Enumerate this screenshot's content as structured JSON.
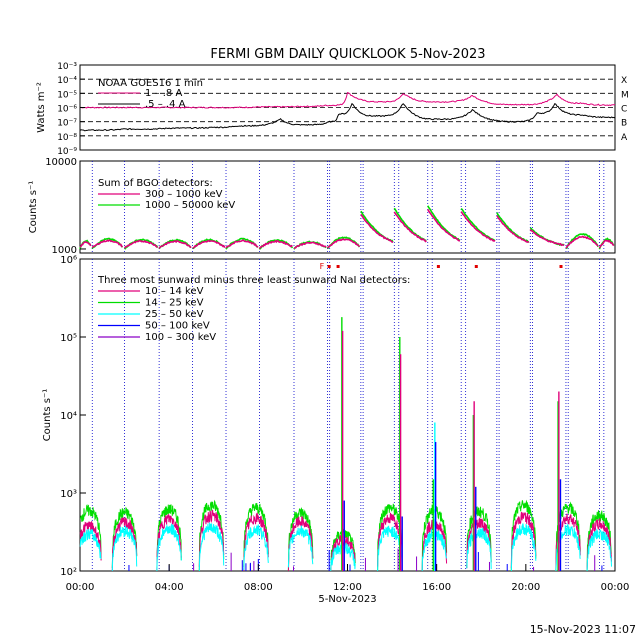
{
  "header": {
    "title": "FERMI GBM DAILY QUICKLOOK    5-Nov-2023",
    "footer_timestamp": "15-Nov-2023 11:07"
  },
  "colors": {
    "magenta": "#e0007a",
    "green": "#00dd00",
    "cyan": "#00ffff",
    "blue": "#0000ff",
    "purple": "#8b00c8",
    "black": "#000000",
    "flag_red": "#e00000"
  },
  "chart_data": [
    {
      "type": "line",
      "panel": "goes",
      "ylabel": "Watts m⁻²",
      "ylim": [
        1e-09,
        0.001
      ],
      "log_y": true,
      "y_tick_labels": [
        "10⁻³",
        "10⁻⁴",
        "10⁻⁵",
        "10⁻⁶",
        "10⁻⁷",
        "10⁻⁸",
        "10⁻⁹"
      ],
      "flare_classes": [
        "X",
        "M",
        "C",
        "B",
        "A"
      ],
      "legend_title": "NOAA GOES16 1 min",
      "series": [
        {
          "name": "1 – .8 A",
          "color": "magenta",
          "x": [
            0,
            2,
            4,
            6,
            8,
            10,
            11,
            11.5,
            12,
            13.5,
            14.5,
            16,
            17.6,
            19.5,
            21.4,
            22.5,
            24
          ],
          "values": [
            1e-06,
            1e-06,
            1e-06,
            1e-06,
            1.1e-06,
            1.2e-06,
            1.4e-06,
            1.5e-06,
            1.2e-05,
            2.5e-06,
            1e-05,
            2.5e-06,
            7e-06,
            1.6e-06,
            8e-06,
            2e-06,
            1.5e-06
          ]
        },
        {
          "name": ".5 – .4 A",
          "color": "black",
          "x": [
            0,
            2,
            4,
            6,
            7,
            9,
            10,
            11.2,
            11.6,
            12.2,
            13.3,
            14.5,
            16,
            17.6,
            19.5,
            20.5,
            21.3,
            22.5,
            24
          ],
          "values": [
            2.5e-08,
            3e-08,
            3.5e-08,
            4e-08,
            5e-08,
            1.5e-07,
            6e-08,
            1e-07,
            3.5e-07,
            2e-06,
            2.5e-07,
            2e-06,
            1.5e-07,
            7e-07,
            1e-07,
            4e-07,
            2e-06,
            3e-07,
            2e-07
          ]
        }
      ]
    },
    {
      "type": "line",
      "panel": "bgo",
      "ylabel": "Counts s⁻¹",
      "ylim": [
        900,
        10000
      ],
      "log_y": true,
      "y_tick_labels": [
        "10000",
        "1000"
      ],
      "legend_title": "Sum of BGO detectors:",
      "series": [
        {
          "name": "300 – 1000 keV",
          "color": "magenta"
        },
        {
          "name": "1000 – 50000 keV",
          "color": "green"
        }
      ],
      "orbits": [
        {
          "start": 0.0,
          "end": 0.55,
          "peak": 1200
        },
        {
          "start": 0.55,
          "end": 2.0,
          "peak": 1250
        },
        {
          "start": 2.0,
          "end": 3.55,
          "peak": 1230
        },
        {
          "start": 3.55,
          "end": 5.05,
          "peak": 1220
        },
        {
          "start": 5.05,
          "end": 6.55,
          "peak": 1230
        },
        {
          "start": 6.55,
          "end": 8.05,
          "peak": 1250
        },
        {
          "start": 8.05,
          "end": 9.6,
          "peak": 1220
        },
        {
          "start": 9.6,
          "end": 11.1,
          "peak": 1170
        },
        {
          "start": 11.1,
          "end": 12.6,
          "peak": 1300
        },
        {
          "start": 12.6,
          "end": 14.1,
          "peak": 2600
        },
        {
          "start": 14.1,
          "end": 15.6,
          "peak": 2800
        },
        {
          "start": 15.6,
          "end": 17.1,
          "peak": 3000
        },
        {
          "start": 17.1,
          "end": 18.7,
          "peak": 2800
        },
        {
          "start": 18.7,
          "end": 20.2,
          "peak": 2500
        },
        {
          "start": 20.2,
          "end": 21.8,
          "peak": 1700
        },
        {
          "start": 21.8,
          "end": 23.3,
          "peak": 1400
        },
        {
          "start": 23.3,
          "end": 24.0,
          "peak": 1250
        }
      ]
    },
    {
      "type": "line",
      "panel": "nai",
      "ylabel": "Counts s⁻¹",
      "ylim": [
        100,
        1000000
      ],
      "log_y": true,
      "y_tick_labels": [
        "10⁶",
        "10⁵",
        "10⁴",
        "10³",
        "10²"
      ],
      "legend_title": "Three most sunward minus three least sunward NaI detectors:",
      "series": [
        {
          "name": "10 – 14 keV",
          "color": "magenta"
        },
        {
          "name": "14 – 25 keV",
          "color": "green"
        },
        {
          "name": "25 – 50 keV",
          "color": "cyan"
        },
        {
          "name": "50 – 100 keV",
          "color": "blue"
        },
        {
          "name": "100 – 300 keV",
          "color": "purple"
        }
      ],
      "humps": [
        {
          "center": 0.4,
          "green": 600,
          "magenta": 380,
          "cyan": 300
        },
        {
          "center": 2.0,
          "green": 560,
          "magenta": 420,
          "cyan": 330
        },
        {
          "center": 4.0,
          "green": 620,
          "magenta": 470,
          "cyan": 350
        },
        {
          "center": 5.9,
          "green": 700,
          "magenta": 520,
          "cyan": 360
        },
        {
          "center": 7.9,
          "green": 650,
          "magenta": 480,
          "cyan": 340
        },
        {
          "center": 9.9,
          "green": 560,
          "magenta": 430,
          "cyan": 330
        },
        {
          "center": 11.8,
          "green": 300,
          "magenta": 250,
          "cyan": 200
        },
        {
          "center": 13.9,
          "green": 650,
          "magenta": 480,
          "cyan": 330
        },
        {
          "center": 15.9,
          "green": 600,
          "magenta": 400,
          "cyan": 300
        },
        {
          "center": 17.9,
          "green": 580,
          "magenta": 420,
          "cyan": 320
        },
        {
          "center": 19.9,
          "green": 700,
          "magenta": 500,
          "cyan": 350
        },
        {
          "center": 21.9,
          "green": 650,
          "magenta": 480,
          "cyan": 340
        },
        {
          "center": 23.3,
          "green": 520,
          "magenta": 400,
          "cyan": 300
        }
      ],
      "spikes": [
        {
          "x": 11.8,
          "green": 180000,
          "magenta": 120000,
          "blue": 800
        },
        {
          "x": 14.4,
          "green": 100000,
          "magenta": 60000,
          "blue": 500
        },
        {
          "x": 15.9,
          "green": 1500,
          "cyan": 8000,
          "blue": 4500
        },
        {
          "x": 17.7,
          "green": 10000,
          "magenta": 15000,
          "blue": 1200
        },
        {
          "x": 21.5,
          "green": 15000,
          "magenta": 20000,
          "blue": 1500
        }
      ],
      "flags": [
        {
          "x": 11.2,
          "label": "F"
        },
        {
          "x": 11.6,
          "label": ""
        },
        {
          "x": 16.1,
          "label": ""
        },
        {
          "x": 17.8,
          "label": ""
        },
        {
          "x": 21.6,
          "label": ""
        }
      ],
      "x_ticks": [
        0,
        4,
        8,
        12,
        16,
        20,
        24
      ],
      "x_tick_labels": [
        "00:00",
        "04:00",
        "08:00",
        "12:00",
        "16:00",
        "20:00",
        "00:00"
      ],
      "xlabel": "5-Nov-2023",
      "xlim": [
        0,
        24
      ]
    }
  ],
  "dotted_lines_hours": [
    0.55,
    2.0,
    3.55,
    5.05,
    6.55,
    8.05,
    9.6,
    11.1,
    11.2,
    12.6,
    12.7,
    14.1,
    14.3,
    15.6,
    15.8,
    17.1,
    17.3,
    18.7,
    18.8,
    20.2,
    20.3,
    21.8,
    21.9,
    23.3,
    23.5
  ]
}
